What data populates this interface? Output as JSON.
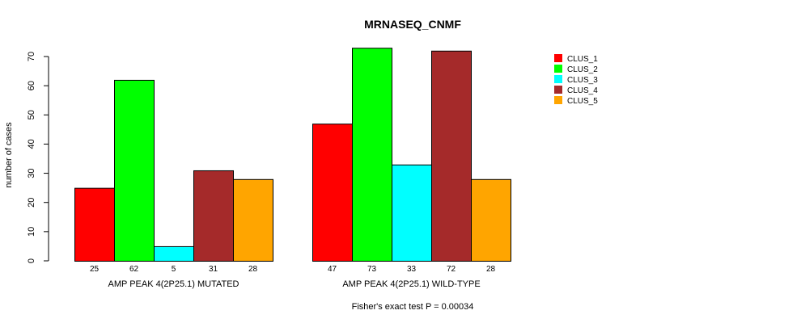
{
  "chart_data": {
    "type": "bar",
    "title": "MRNASEQ_CNMF",
    "ylabel": "number of cases",
    "ylim": [
      0,
      70
    ],
    "yticks": [
      0,
      10,
      20,
      30,
      40,
      50,
      60,
      70
    ],
    "footnote": "Fisher's exact test P = 0.00034",
    "legend_placement": "top-right",
    "series_names": [
      "CLUS_1",
      "CLUS_2",
      "CLUS_3",
      "CLUS_4",
      "CLUS_5"
    ],
    "colors": [
      "#ff0000",
      "#00ff00",
      "#00ffff",
      "#a52a2a",
      "#ffa500"
    ],
    "groups": [
      {
        "label": "AMP PEAK  4(2P25.1) MUTATED",
        "values": [
          25,
          62,
          5,
          31,
          28
        ]
      },
      {
        "label": "AMP PEAK  4(2P25.1) WILD-TYPE",
        "values": [
          47,
          73,
          33,
          72,
          28
        ]
      }
    ]
  }
}
